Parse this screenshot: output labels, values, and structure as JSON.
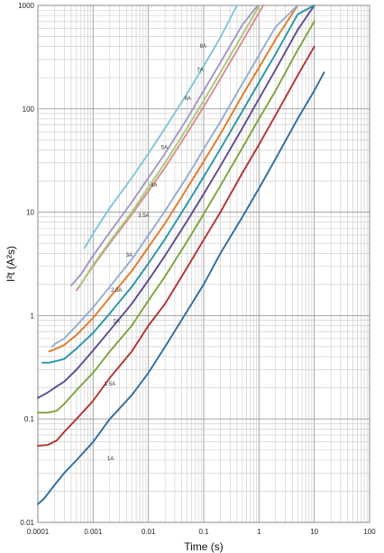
{
  "chart_data": {
    "type": "line",
    "title": "",
    "xlabel": "Time (s)",
    "ylabel": "I²t (A²s)",
    "xscale": "log",
    "yscale": "log",
    "xlim": [
      0.0001,
      100
    ],
    "ylim": [
      0.01,
      1000
    ],
    "grid": true,
    "legend": "none",
    "x_ticks": [
      "0.0001",
      "0.001",
      "0.01",
      "0.1",
      "1",
      "10",
      "100"
    ],
    "y_ticks": [
      "1000",
      "100",
      "10",
      "1",
      "0.1",
      "0.01"
    ],
    "series": [
      {
        "name": "1A",
        "color": "#2f6e9f",
        "label_at": [
          0.0018,
          0.04
        ],
        "points": [
          [
            0.0001,
            0.015
          ],
          [
            0.00013,
            0.017
          ],
          [
            0.0002,
            0.023
          ],
          [
            0.0003,
            0.03
          ],
          [
            0.0005,
            0.04
          ],
          [
            0.001,
            0.06
          ],
          [
            0.002,
            0.1
          ],
          [
            0.005,
            0.17
          ],
          [
            0.01,
            0.28
          ],
          [
            0.02,
            0.5
          ],
          [
            0.05,
            1.1
          ],
          [
            0.1,
            2
          ],
          [
            0.2,
            4
          ],
          [
            0.5,
            9
          ],
          [
            1,
            17
          ],
          [
            2,
            33
          ],
          [
            5,
            80
          ],
          [
            10,
            150
          ],
          [
            15,
            225
          ]
        ]
      },
      {
        "name": "1.5A",
        "color": "#b03530",
        "label_at": [
          0.0016,
          0.21
        ],
        "points": [
          [
            0.0001,
            0.055
          ],
          [
            0.00015,
            0.056
          ],
          [
            0.00022,
            0.062
          ],
          [
            0.0003,
            0.075
          ],
          [
            0.0005,
            0.1
          ],
          [
            0.001,
            0.15
          ],
          [
            0.002,
            0.25
          ],
          [
            0.005,
            0.45
          ],
          [
            0.01,
            0.8
          ],
          [
            0.02,
            1.3
          ],
          [
            0.05,
            2.9
          ],
          [
            0.1,
            5.4
          ],
          [
            0.2,
            10
          ],
          [
            0.5,
            24
          ],
          [
            1,
            45
          ],
          [
            2,
            87
          ],
          [
            5,
            210
          ],
          [
            10,
            400
          ]
        ]
      },
      {
        "name": "2A",
        "color": "#7da23c",
        "label_at": [
          0.0023,
          0.85
        ],
        "points": [
          [
            0.0001,
            0.115
          ],
          [
            0.00015,
            0.115
          ],
          [
            0.00022,
            0.12
          ],
          [
            0.0003,
            0.14
          ],
          [
            0.0005,
            0.19
          ],
          [
            0.001,
            0.28
          ],
          [
            0.002,
            0.45
          ],
          [
            0.005,
            0.8
          ],
          [
            0.01,
            1.4
          ],
          [
            0.02,
            2.4
          ],
          [
            0.05,
            5.2
          ],
          [
            0.1,
            9.6
          ],
          [
            0.2,
            18
          ],
          [
            0.5,
            42
          ],
          [
            1,
            80
          ],
          [
            2,
            150
          ],
          [
            5,
            370
          ],
          [
            10,
            700
          ]
        ]
      },
      {
        "name": "2.5A",
        "color": "#5f4a8e",
        "label_at": [
          0.0021,
          1.7
        ],
        "points": [
          [
            0.0001,
            0.16
          ],
          [
            0.00015,
            0.18
          ],
          [
            0.0002,
            0.2
          ],
          [
            0.0003,
            0.23
          ],
          [
            0.0005,
            0.3
          ],
          [
            0.001,
            0.46
          ],
          [
            0.002,
            0.72
          ],
          [
            0.005,
            1.3
          ],
          [
            0.01,
            2.2
          ],
          [
            0.02,
            3.8
          ],
          [
            0.05,
            8.2
          ],
          [
            0.1,
            15
          ],
          [
            0.2,
            28
          ],
          [
            0.5,
            65
          ],
          [
            1,
            125
          ],
          [
            2,
            240
          ],
          [
            5,
            580
          ],
          [
            10,
            1000
          ]
        ]
      },
      {
        "name": "3A",
        "color": "#2796a8",
        "label_at": [
          0.0039,
          3.7
        ],
        "points": [
          [
            0.00012,
            0.35
          ],
          [
            0.00016,
            0.35
          ],
          [
            0.0002,
            0.36
          ],
          [
            0.0003,
            0.38
          ],
          [
            0.0005,
            0.48
          ],
          [
            0.001,
            0.68
          ],
          [
            0.002,
            1.05
          ],
          [
            0.005,
            1.9
          ],
          [
            0.01,
            3.2
          ],
          [
            0.02,
            5.5
          ],
          [
            0.05,
            12
          ],
          [
            0.1,
            22
          ],
          [
            0.2,
            41
          ],
          [
            0.5,
            95
          ],
          [
            1,
            180
          ],
          [
            2,
            340
          ],
          [
            5,
            820
          ],
          [
            10,
            1000
          ]
        ]
      },
      {
        "name": "3.5A",
        "color": "#e07b25",
        "label_at": [
          0.0065,
          9
        ],
        "points": [
          [
            0.00016,
            0.45
          ],
          [
            0.0002,
            0.47
          ],
          [
            0.0003,
            0.52
          ],
          [
            0.0005,
            0.65
          ],
          [
            0.001,
            0.95
          ],
          [
            0.002,
            1.5
          ],
          [
            0.005,
            2.7
          ],
          [
            0.01,
            4.6
          ],
          [
            0.02,
            7.8
          ],
          [
            0.05,
            17
          ],
          [
            0.1,
            31
          ],
          [
            0.2,
            57
          ],
          [
            0.5,
            135
          ],
          [
            1,
            250
          ],
          [
            2,
            470
          ],
          [
            5,
            1000
          ]
        ]
      },
      {
        "name": "4A",
        "color": "#95adcf",
        "label_at": [
          0.011,
          17.5
        ],
        "points": [
          [
            0.00018,
            0.5
          ],
          [
            0.0002,
            0.53
          ],
          [
            0.0003,
            0.6
          ],
          [
            0.0005,
            0.8
          ],
          [
            0.001,
            1.2
          ],
          [
            0.002,
            1.9
          ],
          [
            0.005,
            3.5
          ],
          [
            0.01,
            6
          ],
          [
            0.02,
            10.3
          ],
          [
            0.05,
            22
          ],
          [
            0.1,
            41
          ],
          [
            0.2,
            75
          ],
          [
            0.5,
            175
          ],
          [
            1,
            330
          ],
          [
            2,
            620
          ],
          [
            5,
            1000
          ]
        ]
      },
      {
        "name": "5A",
        "color": "#d98d8d",
        "label_at": [
          0.017,
          41
        ],
        "points": [
          [
            0.0005,
            1.75
          ],
          [
            0.0007,
            2.3
          ],
          [
            0.001,
            3
          ],
          [
            0.002,
            5
          ],
          [
            0.005,
            9.5
          ],
          [
            0.01,
            16
          ],
          [
            0.02,
            27
          ],
          [
            0.05,
            58
          ],
          [
            0.1,
            105
          ],
          [
            0.2,
            195
          ],
          [
            0.5,
            450
          ],
          [
            1,
            850
          ],
          [
            1.2,
            1000
          ]
        ]
      },
      {
        "name": "6A",
        "color": "#a8c97d",
        "label_at": [
          0.045,
          122
        ],
        "points": [
          [
            0.00055,
            1.85
          ],
          [
            0.0007,
            2.3
          ],
          [
            0.001,
            3.1
          ],
          [
            0.002,
            5.2
          ],
          [
            0.005,
            10
          ],
          [
            0.01,
            17.5
          ],
          [
            0.02,
            30
          ],
          [
            0.05,
            65
          ],
          [
            0.1,
            120
          ],
          [
            0.2,
            225
          ],
          [
            0.5,
            520
          ],
          [
            1,
            980
          ],
          [
            1.03,
            1000
          ]
        ]
      },
      {
        "name": "7A",
        "color": "#a695c4",
        "label_at": [
          0.075,
          230
        ],
        "points": [
          [
            0.0004,
            1.95
          ],
          [
            0.0006,
            2.5
          ],
          [
            0.001,
            3.8
          ],
          [
            0.002,
            6.4
          ],
          [
            0.005,
            12.5
          ],
          [
            0.01,
            21.5
          ],
          [
            0.02,
            37
          ],
          [
            0.05,
            80
          ],
          [
            0.1,
            150
          ],
          [
            0.2,
            280
          ],
          [
            0.5,
            650
          ],
          [
            0.95,
            1000
          ]
        ]
      },
      {
        "name": "8A",
        "color": "#7ec5dd",
        "label_at": [
          0.085,
          390
        ],
        "points": [
          [
            0.0007,
            4.5
          ],
          [
            0.001,
            6.2
          ],
          [
            0.002,
            11
          ],
          [
            0.005,
            21.5
          ],
          [
            0.01,
            37
          ],
          [
            0.02,
            65
          ],
          [
            0.05,
            140
          ],
          [
            0.1,
            260
          ],
          [
            0.2,
            490
          ],
          [
            0.4,
            1000
          ]
        ]
      }
    ]
  }
}
